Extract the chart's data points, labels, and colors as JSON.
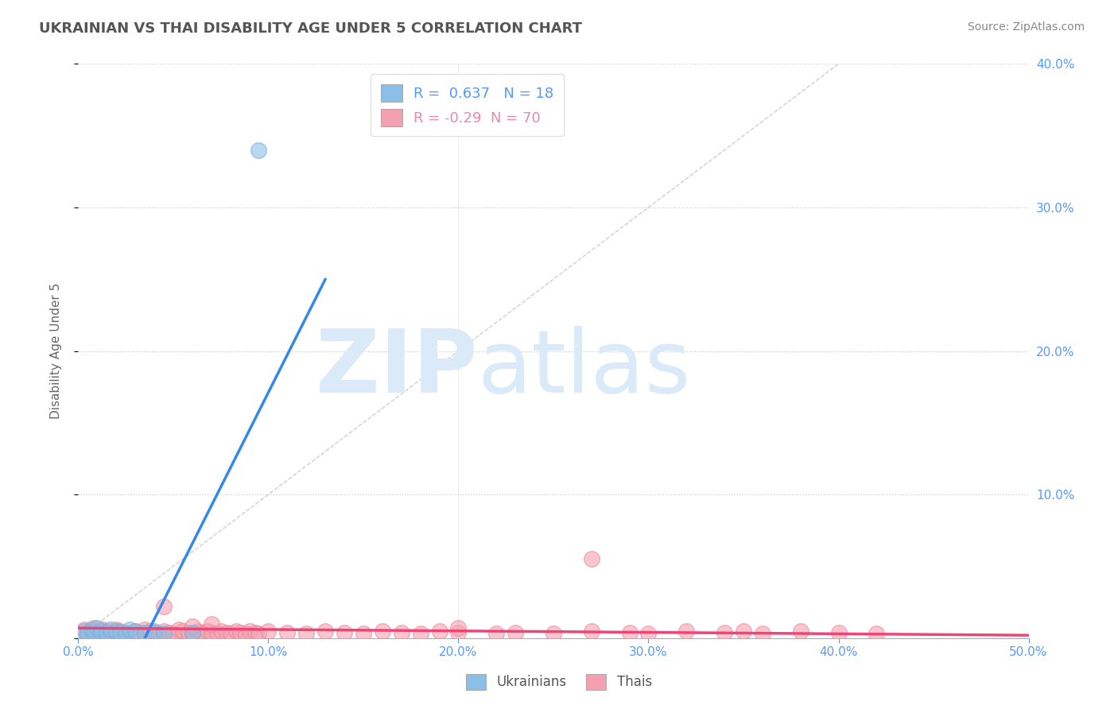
{
  "title": "UKRAINIAN VS THAI DISABILITY AGE UNDER 5 CORRELATION CHART",
  "source": "Source: ZipAtlas.com",
  "xlabel": "",
  "ylabel": "Disability Age Under 5",
  "xlim": [
    0.0,
    0.5
  ],
  "ylim": [
    0.0,
    0.4
  ],
  "xticks": [
    0.0,
    0.1,
    0.2,
    0.3,
    0.4,
    0.5
  ],
  "yticks": [
    0.0,
    0.1,
    0.2,
    0.3,
    0.4
  ],
  "xtick_labels": [
    "0.0%",
    "10.0%",
    "20.0%",
    "30.0%",
    "40.0%",
    "50.0%"
  ],
  "ytick_labels_right": [
    "",
    "10.0%",
    "20.0%",
    "30.0%",
    "40.0%"
  ],
  "ukrainian_R": 0.637,
  "ukrainian_N": 18,
  "thai_R": -0.29,
  "thai_N": 70,
  "ukrainian_color": "#8bbfe8",
  "ukrainian_edge": "#7aadda",
  "thai_color": "#f5a0b0",
  "thai_edge": "#e88898",
  "ukrainian_scatter": [
    [
      0.003,
      0.005
    ],
    [
      0.005,
      0.003
    ],
    [
      0.007,
      0.006
    ],
    [
      0.008,
      0.004
    ],
    [
      0.01,
      0.007
    ],
    [
      0.012,
      0.005
    ],
    [
      0.015,
      0.004
    ],
    [
      0.017,
      0.006
    ],
    [
      0.02,
      0.005
    ],
    [
      0.022,
      0.004
    ],
    [
      0.025,
      0.003
    ],
    [
      0.027,
      0.006
    ],
    [
      0.03,
      0.005
    ],
    [
      0.035,
      0.004
    ],
    [
      0.04,
      0.005
    ],
    [
      0.045,
      0.003
    ],
    [
      0.06,
      0.004
    ],
    [
      0.095,
      0.34
    ]
  ],
  "thai_scatter": [
    [
      0.003,
      0.006
    ],
    [
      0.005,
      0.004
    ],
    [
      0.007,
      0.003
    ],
    [
      0.008,
      0.007
    ],
    [
      0.01,
      0.005
    ],
    [
      0.012,
      0.004
    ],
    [
      0.013,
      0.006
    ],
    [
      0.015,
      0.005
    ],
    [
      0.017,
      0.004
    ],
    [
      0.018,
      0.003
    ],
    [
      0.02,
      0.006
    ],
    [
      0.022,
      0.005
    ],
    [
      0.025,
      0.004
    ],
    [
      0.027,
      0.003
    ],
    [
      0.03,
      0.005
    ],
    [
      0.033,
      0.004
    ],
    [
      0.035,
      0.006
    ],
    [
      0.038,
      0.005
    ],
    [
      0.04,
      0.004
    ],
    [
      0.042,
      0.003
    ],
    [
      0.045,
      0.005
    ],
    [
      0.048,
      0.004
    ],
    [
      0.05,
      0.003
    ],
    [
      0.053,
      0.006
    ],
    [
      0.055,
      0.005
    ],
    [
      0.058,
      0.004
    ],
    [
      0.06,
      0.003
    ],
    [
      0.063,
      0.005
    ],
    [
      0.065,
      0.004
    ],
    [
      0.068,
      0.005
    ],
    [
      0.07,
      0.004
    ],
    [
      0.073,
      0.003
    ],
    [
      0.075,
      0.005
    ],
    [
      0.078,
      0.004
    ],
    [
      0.08,
      0.003
    ],
    [
      0.083,
      0.005
    ],
    [
      0.085,
      0.004
    ],
    [
      0.088,
      0.003
    ],
    [
      0.09,
      0.005
    ],
    [
      0.093,
      0.004
    ],
    [
      0.095,
      0.003
    ],
    [
      0.1,
      0.005
    ],
    [
      0.11,
      0.004
    ],
    [
      0.12,
      0.003
    ],
    [
      0.13,
      0.005
    ],
    [
      0.14,
      0.004
    ],
    [
      0.15,
      0.003
    ],
    [
      0.16,
      0.005
    ],
    [
      0.17,
      0.004
    ],
    [
      0.18,
      0.003
    ],
    [
      0.19,
      0.005
    ],
    [
      0.2,
      0.004
    ],
    [
      0.22,
      0.003
    ],
    [
      0.23,
      0.004
    ],
    [
      0.25,
      0.003
    ],
    [
      0.27,
      0.005
    ],
    [
      0.29,
      0.004
    ],
    [
      0.3,
      0.003
    ],
    [
      0.32,
      0.005
    ],
    [
      0.34,
      0.004
    ],
    [
      0.36,
      0.003
    ],
    [
      0.38,
      0.005
    ],
    [
      0.4,
      0.004
    ],
    [
      0.42,
      0.003
    ],
    [
      0.045,
      0.022
    ],
    [
      0.06,
      0.008
    ],
    [
      0.07,
      0.01
    ],
    [
      0.27,
      0.055
    ],
    [
      0.2,
      0.007
    ],
    [
      0.35,
      0.005
    ]
  ],
  "blue_trend_x": [
    0.035,
    0.13
  ],
  "blue_trend_y": [
    0.0,
    0.25
  ],
  "pink_trend_x": [
    0.0,
    0.5
  ],
  "pink_trend_y": [
    0.007,
    0.002
  ],
  "diag_color": "#bbbbbb",
  "watermark_zip": "ZIP",
  "watermark_atlas": "atlas",
  "watermark_color": "#daeaf8",
  "background_color": "#ffffff",
  "grid_color": "#cccccc",
  "title_color": "#555555",
  "tick_color": "#5599ff",
  "legend_ukr_text_color": "#5599ff",
  "legend_thai_text_color": "#e888aa"
}
